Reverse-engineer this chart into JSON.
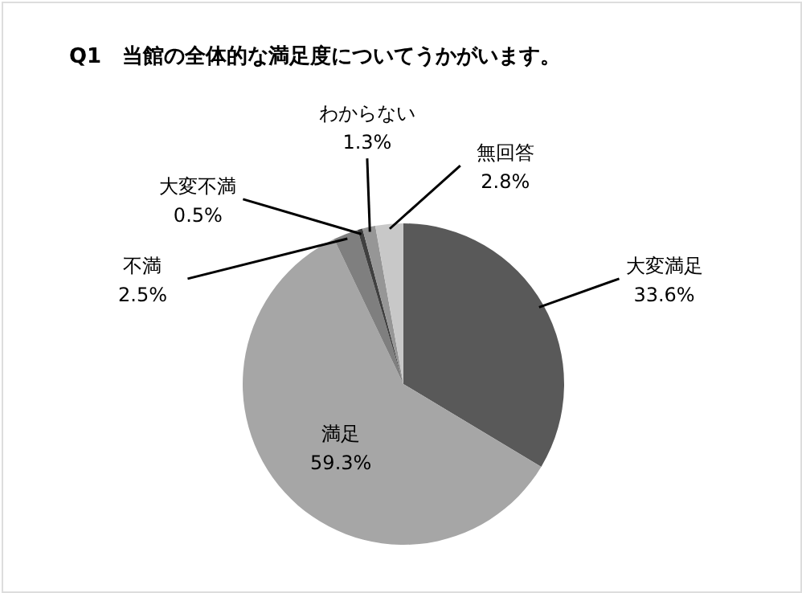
{
  "chart_data": {
    "type": "pie",
    "title": "Q1　当館の全体的な満足度についてうかがいます。",
    "categories": [
      "大変満足",
      "満足",
      "不満",
      "大変不満",
      "わからない",
      "無回答"
    ],
    "values": [
      33.6,
      59.3,
      2.5,
      0.5,
      1.3,
      2.8
    ],
    "value_labels": [
      "33.6%",
      "59.3%",
      "2.5%",
      "0.5%",
      "1.3%",
      "2.8%"
    ],
    "colors": [
      "#595959",
      "#a6a6a6",
      "#7f7f7f",
      "#404040",
      "#969696",
      "#c8c8c8"
    ]
  }
}
